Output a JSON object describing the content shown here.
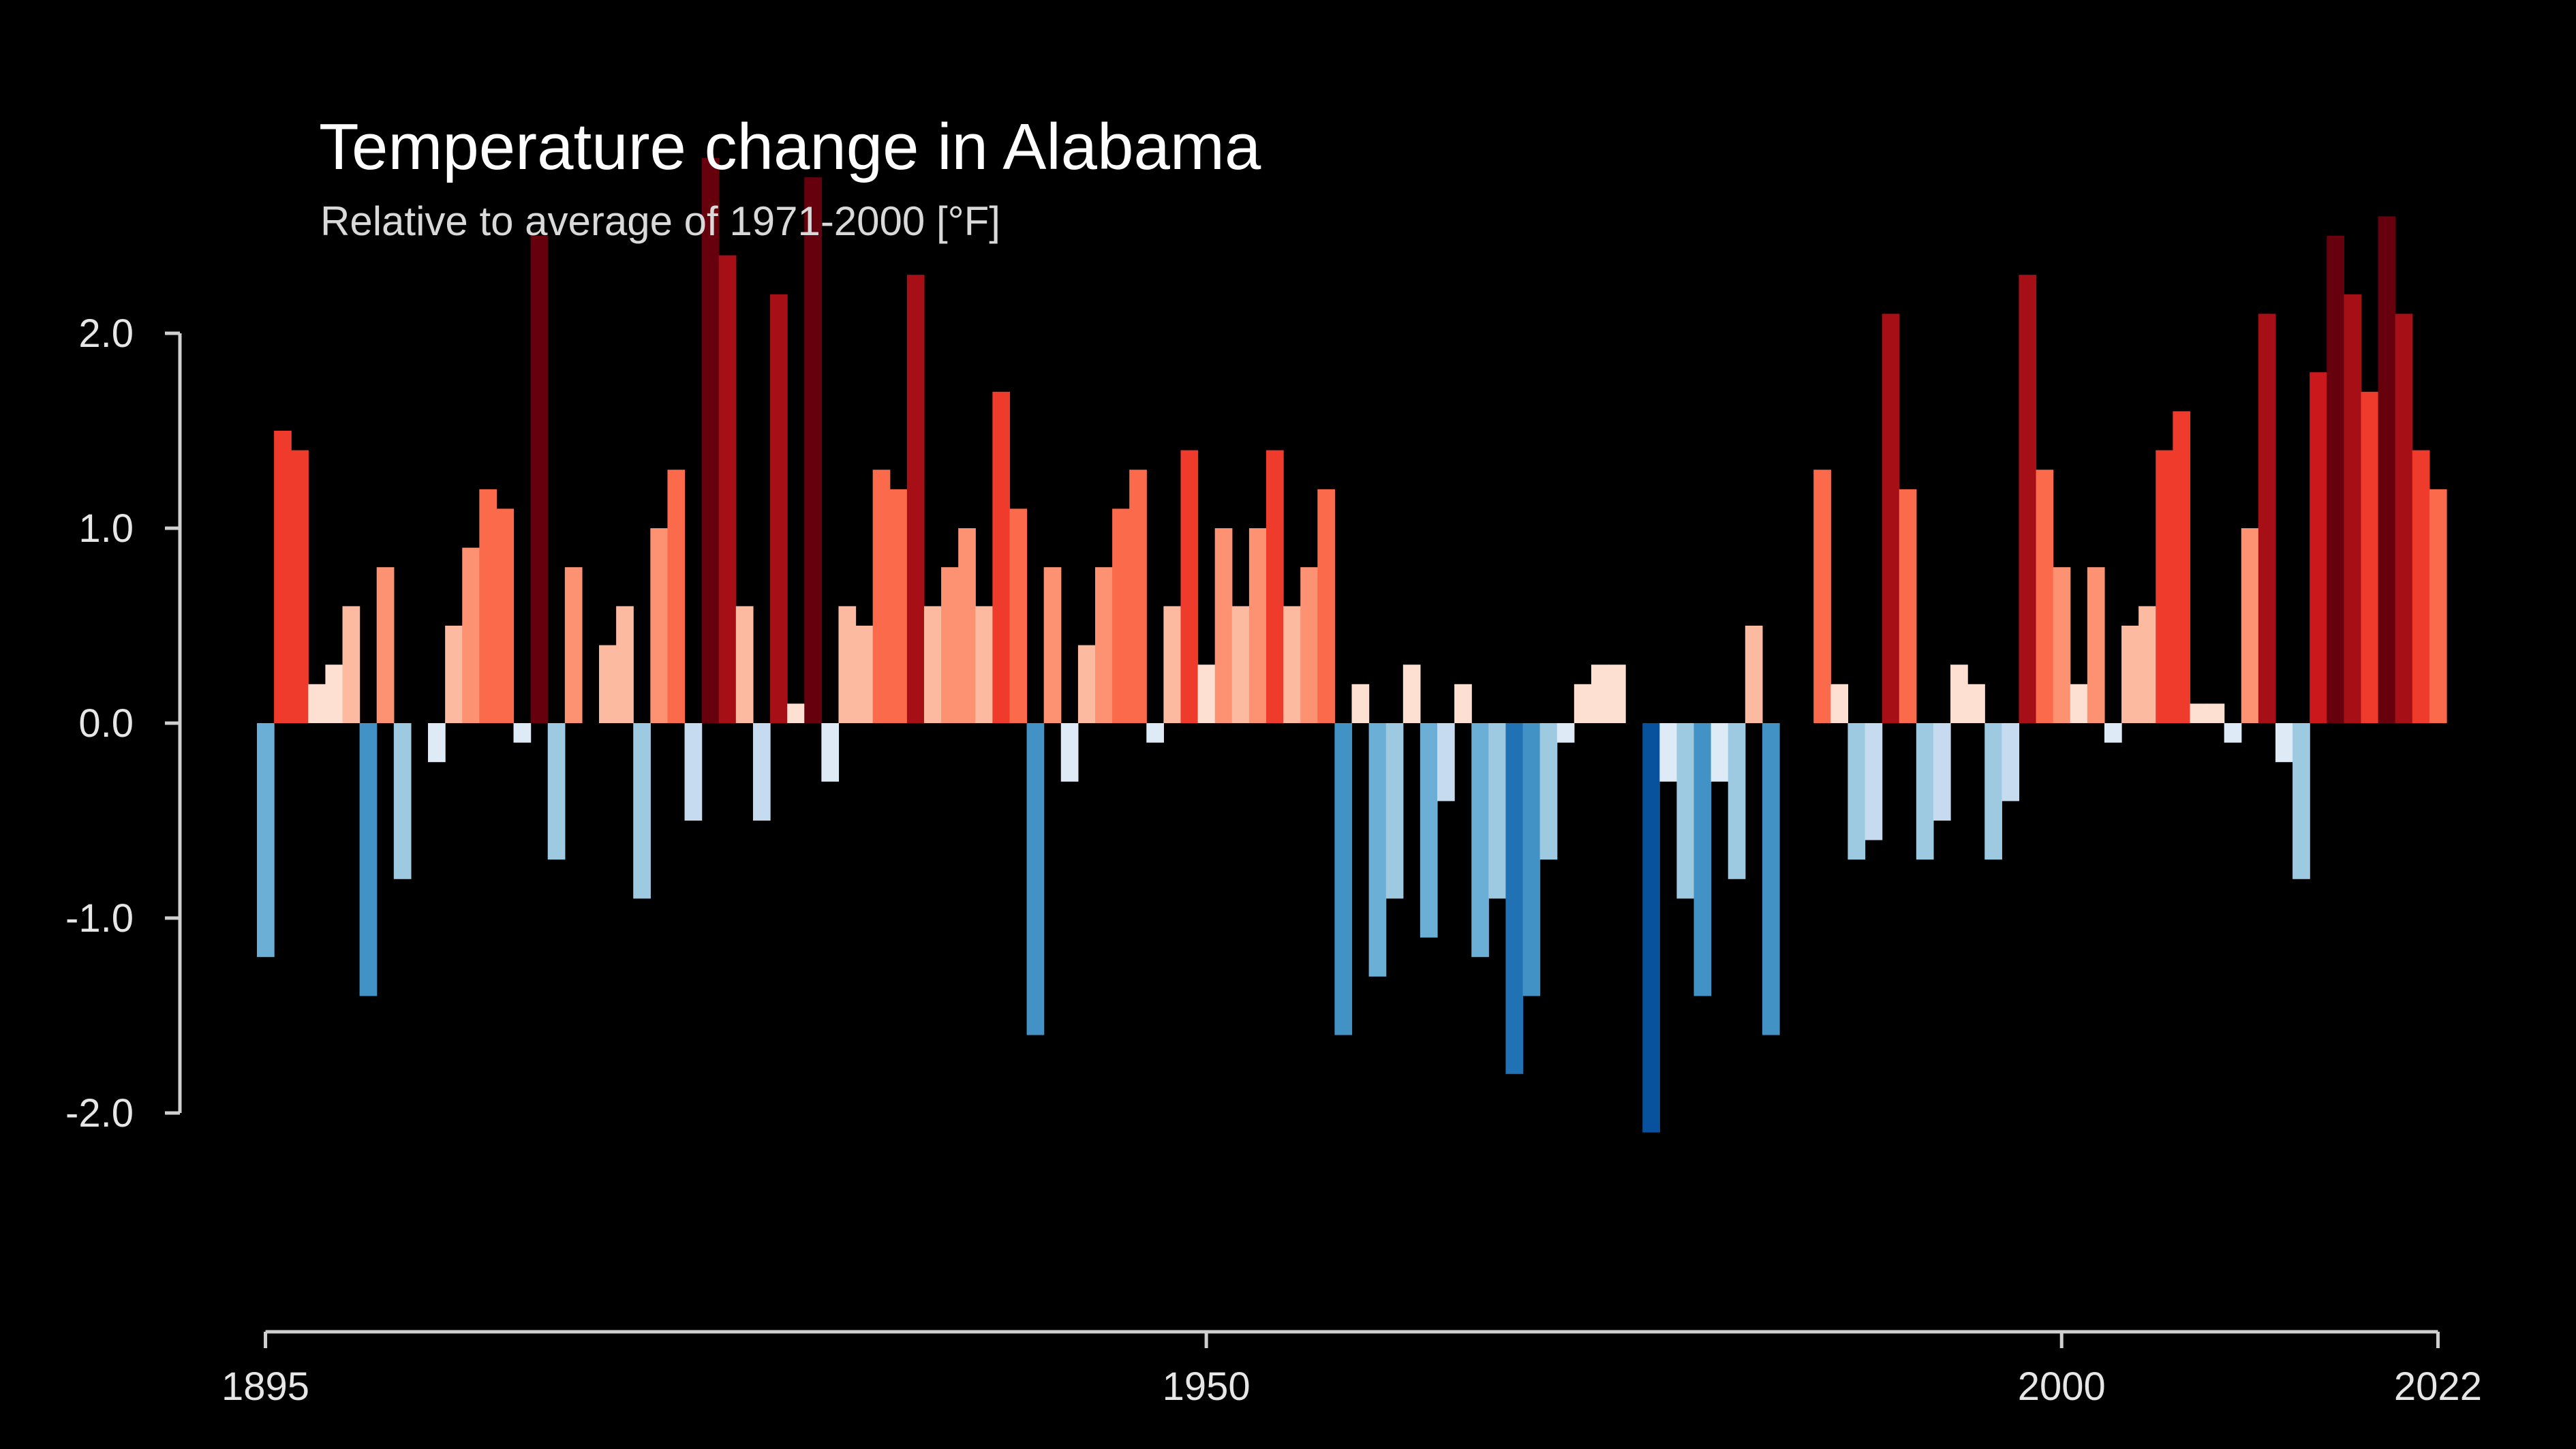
{
  "chart_data": {
    "type": "bar",
    "title": "Temperature change in Alabama",
    "subtitle": "Relative to average of 1971-2000  [°F]",
    "xlabel": "",
    "ylabel": "",
    "x_start": 1895,
    "x_end": 2022,
    "ylim": [
      -2.2,
      2.9
    ],
    "y_ticks": [
      {
        "value": 2.0,
        "label": "2.0"
      },
      {
        "value": 1.0,
        "label": "1.0"
      },
      {
        "value": 0.0,
        "label": "0.0"
      },
      {
        "value": -1.0,
        "label": "-1.0"
      },
      {
        "value": -2.0,
        "label": "-2.0"
      }
    ],
    "x_ticks": [
      {
        "value": 1895,
        "label": "1895"
      },
      {
        "value": 1950,
        "label": "1950"
      },
      {
        "value": 2000,
        "label": "2000"
      },
      {
        "value": 2022,
        "label": "2022"
      }
    ],
    "grid": false,
    "legend": "none",
    "values": [
      -1.2,
      1.5,
      1.4,
      0.2,
      0.3,
      0.6,
      -1.4,
      0.8,
      -0.8,
      0.0,
      -0.2,
      0.5,
      0.9,
      1.2,
      1.1,
      -0.1,
      2.5,
      -0.7,
      0.8,
      0.0,
      0.4,
      0.6,
      -0.9,
      1.0,
      1.3,
      -0.5,
      2.9,
      2.4,
      0.6,
      -0.5,
      2.2,
      0.1,
      2.8,
      -0.3,
      0.6,
      0.5,
      1.3,
      1.2,
      2.3,
      0.6,
      0.8,
      1.0,
      0.6,
      1.7,
      1.1,
      -1.6,
      0.8,
      -0.3,
      0.4,
      0.8,
      1.1,
      1.3,
      -0.1,
      0.6,
      1.4,
      0.3,
      1.0,
      0.6,
      1.0,
      1.4,
      0.6,
      0.8,
      1.2,
      -1.6,
      0.2,
      -1.3,
      -0.9,
      0.3,
      -1.1,
      -0.4,
      0.2,
      -1.2,
      -0.9,
      -1.8,
      -1.4,
      -0.7,
      -0.1,
      0.2,
      0.3,
      0.3,
      0.0,
      -2.1,
      -0.3,
      -0.9,
      -1.4,
      -0.3,
      -0.8,
      0.5,
      -1.6,
      0.0,
      0.0,
      1.3,
      0.2,
      -0.7,
      -0.6,
      2.1,
      1.2,
      -0.7,
      -0.5,
      0.3,
      0.2,
      -0.7,
      -0.4,
      2.3,
      1.3,
      0.8,
      0.2,
      0.8,
      -0.1,
      0.5,
      0.6,
      1.4,
      1.6,
      0.1,
      0.1,
      -0.1,
      1.0,
      2.1,
      -0.2,
      -0.8,
      1.8,
      2.5,
      2.2,
      1.7,
      2.6,
      2.1,
      1.4,
      1.2
    ],
    "color_scale": {
      "warm": [
        "#fee0d2",
        "#fcbba1",
        "#fc9272",
        "#fb6a4a",
        "#ef3b2c",
        "#cb181d",
        "#a50f15",
        "#67000d"
      ],
      "cool": [
        "#deebf7",
        "#c6dbef",
        "#9ecae1",
        "#6baed6",
        "#4292c6",
        "#2171b5",
        "#08519c",
        "#08306b"
      ]
    }
  },
  "colors": {
    "background": "#000000",
    "text": "#ffffff",
    "axis": "#d0d0d0"
  }
}
